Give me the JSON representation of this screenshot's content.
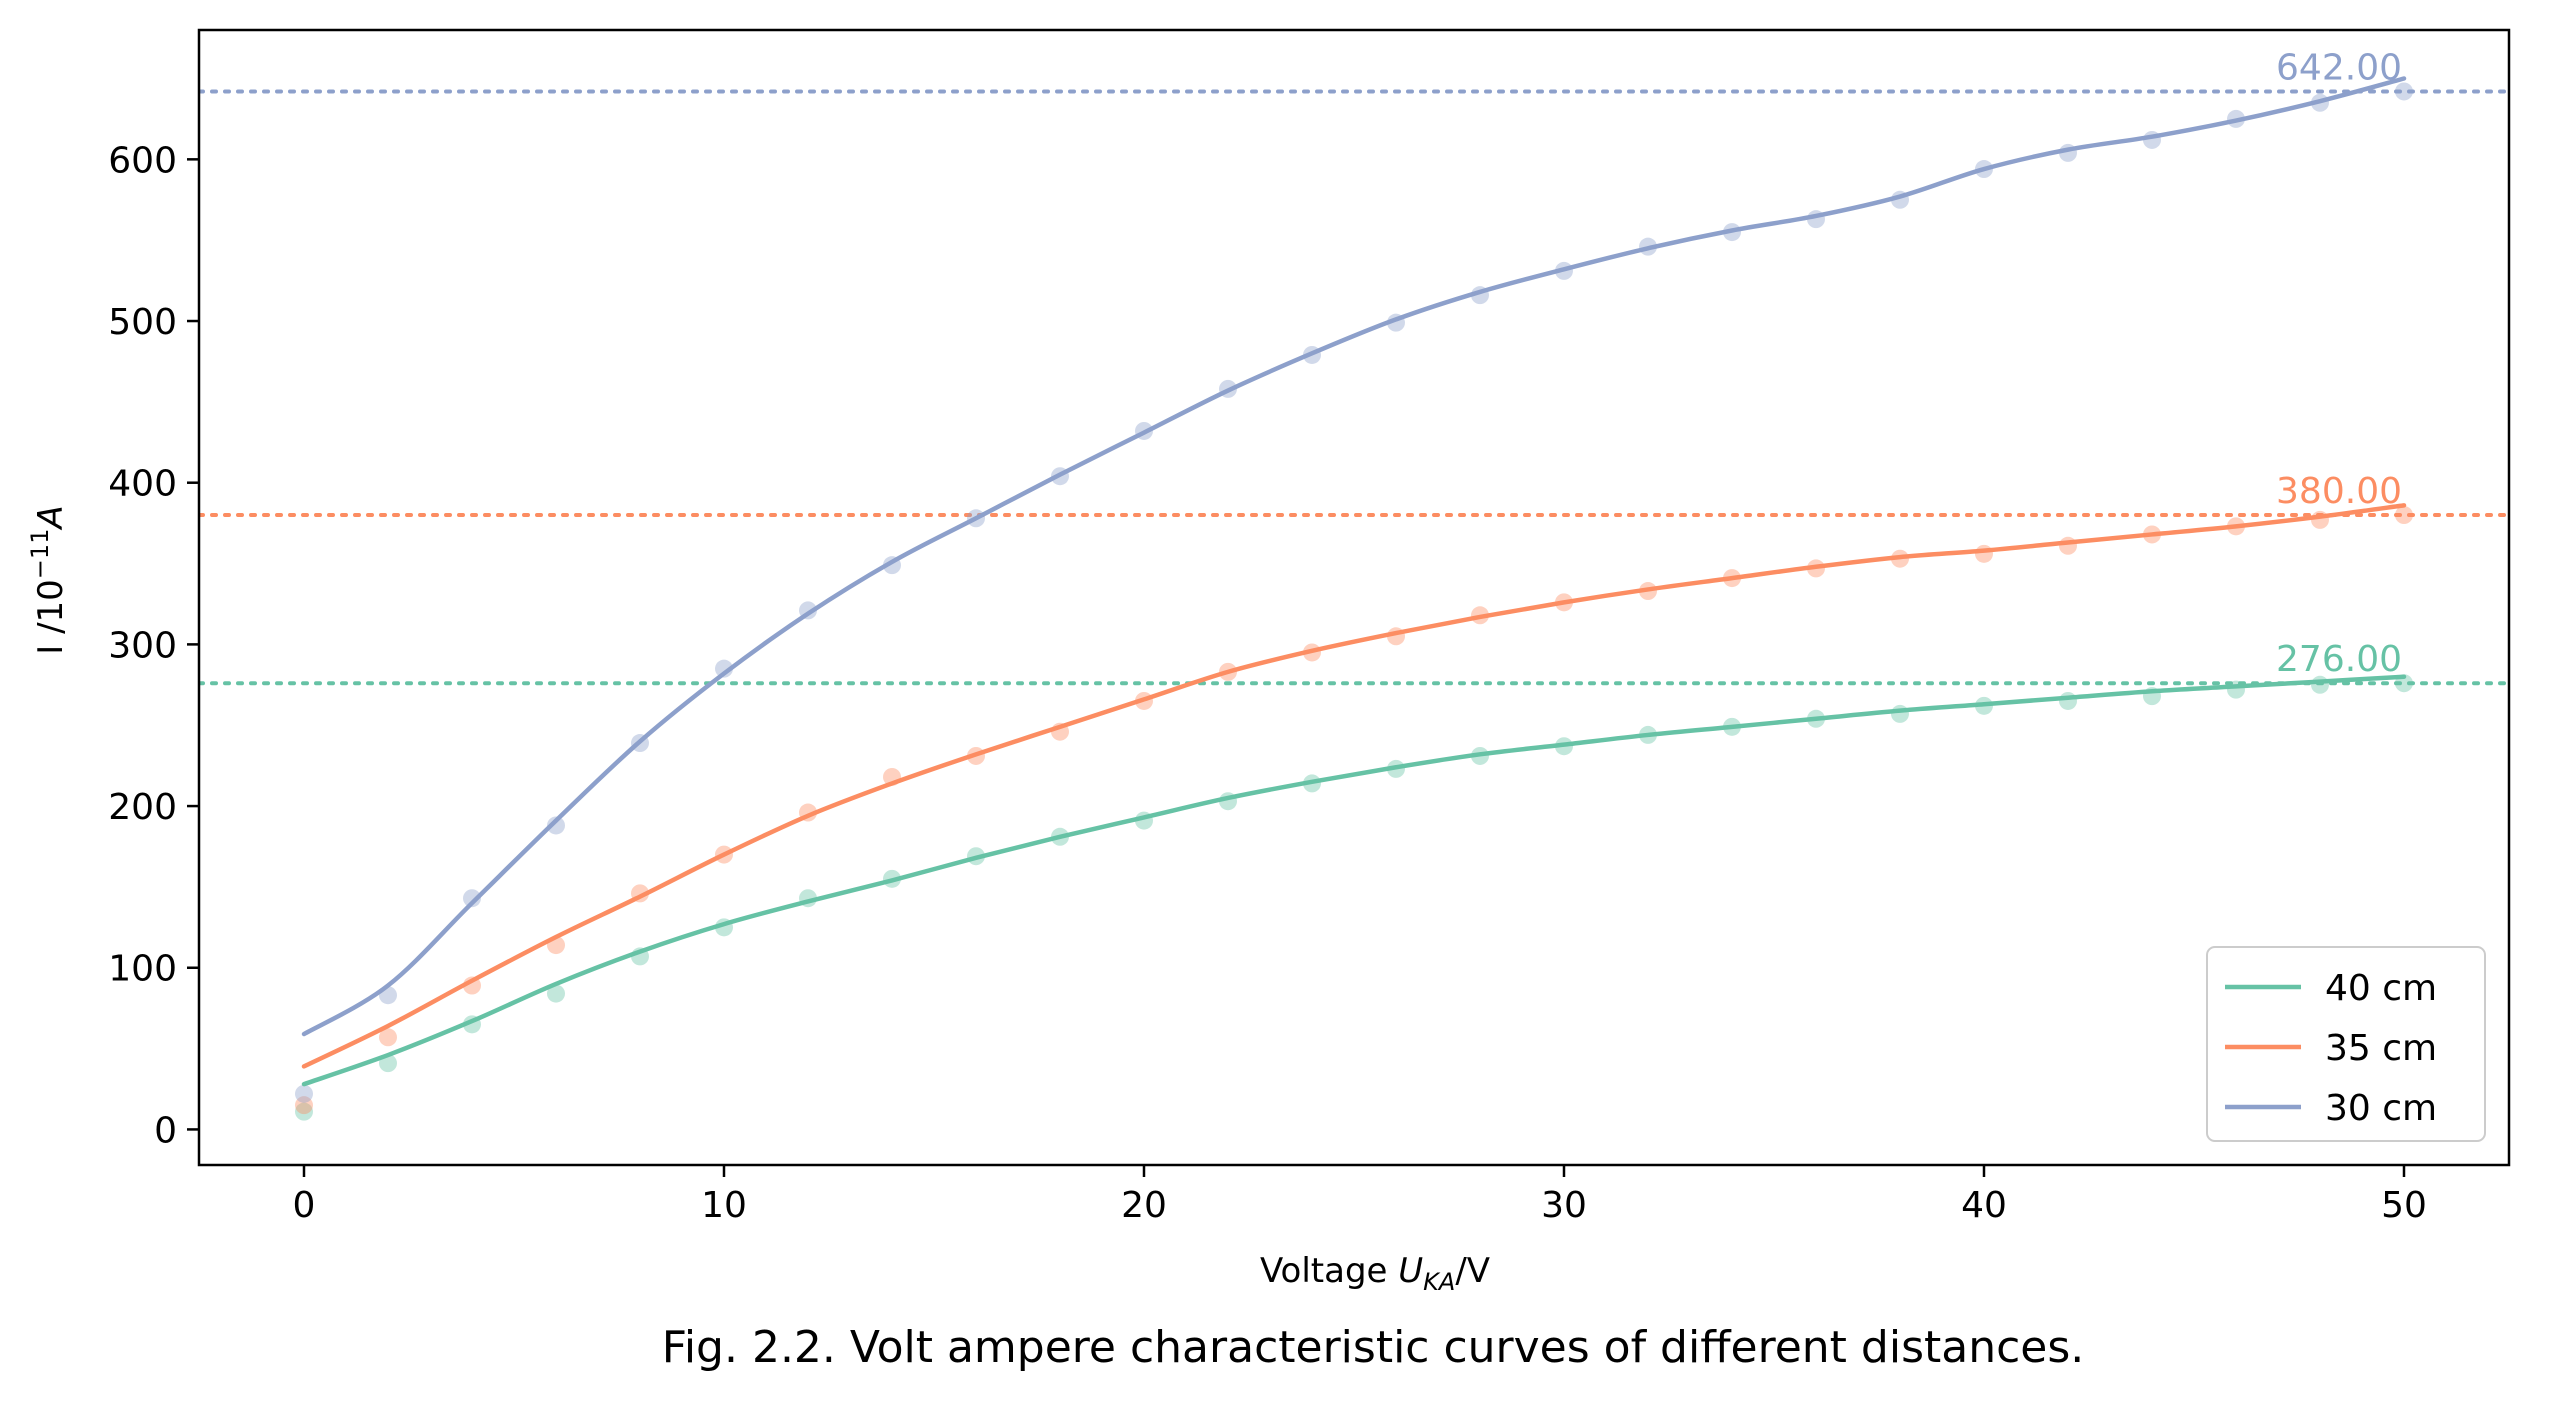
{
  "caption": "Fig. 2.2. Volt ampere characteristic curves of different distances.",
  "chart_data": {
    "type": "line",
    "title": "",
    "xlabel": {
      "prefix": "Voltage ",
      "symbol": "U",
      "subscript": "KA",
      "suffix": "/V"
    },
    "ylabel": {
      "prefix": "I /10",
      "superscript": "−11",
      "suffix": "A"
    },
    "xlim": [
      -2.5,
      52.5
    ],
    "ylim": [
      -22,
      680
    ],
    "xticks": [
      0,
      10,
      20,
      30,
      40,
      50
    ],
    "yticks": [
      0,
      100,
      200,
      300,
      400,
      500,
      600
    ],
    "grid": false,
    "legend_position": "lower right",
    "x": [
      0,
      2,
      4,
      6,
      8,
      10,
      12,
      14,
      16,
      18,
      20,
      22,
      24,
      26,
      28,
      30,
      32,
      34,
      36,
      38,
      40,
      42,
      44,
      46,
      48,
      50
    ],
    "series": [
      {
        "name": "40 cm",
        "color": "#66c2a5",
        "points": [
          11,
          41,
          65,
          84,
          107,
          125,
          143,
          155,
          169,
          181,
          191,
          203,
          214,
          223,
          231,
          237,
          244,
          249,
          254,
          257,
          262,
          265,
          268,
          272,
          275,
          276
        ],
        "curve": [
          28,
          46,
          67,
          90,
          110,
          127,
          141,
          154,
          168,
          181,
          193,
          205,
          215,
          224,
          232,
          238,
          244,
          249,
          254,
          259,
          263,
          267,
          271,
          274,
          277,
          280
        ],
        "reference_value": 276,
        "reference_label": "276.00"
      },
      {
        "name": "35 cm",
        "color": "#fc8d62",
        "points": [
          15,
          57,
          89,
          114,
          146,
          170,
          196,
          218,
          231,
          246,
          265,
          283,
          295,
          305,
          318,
          326,
          333,
          341,
          347,
          353,
          356,
          361,
          368,
          373,
          377,
          380
        ],
        "curve": [
          39,
          64,
          92,
          119,
          144,
          170,
          194,
          214,
          232,
          249,
          266,
          283,
          296,
          307,
          317,
          326,
          334,
          341,
          348,
          354,
          358,
          363,
          368,
          373,
          379,
          386
        ],
        "reference_value": 380,
        "reference_label": "380.00"
      },
      {
        "name": "30 cm",
        "color": "#8da0cb",
        "points": [
          22,
          83,
          143,
          188,
          239,
          285,
          321,
          349,
          378,
          404,
          432,
          458,
          479,
          499,
          516,
          531,
          546,
          555,
          563,
          575,
          594,
          604,
          612,
          625,
          635,
          642
        ],
        "curve": [
          59,
          89,
          140,
          191,
          240,
          282,
          319,
          351,
          378,
          405,
          431,
          457,
          480,
          501,
          518,
          532,
          545,
          556,
          565,
          577,
          594,
          606,
          614,
          624,
          636,
          650
        ],
        "reference_value": 642,
        "reference_label": "642.00"
      }
    ]
  }
}
